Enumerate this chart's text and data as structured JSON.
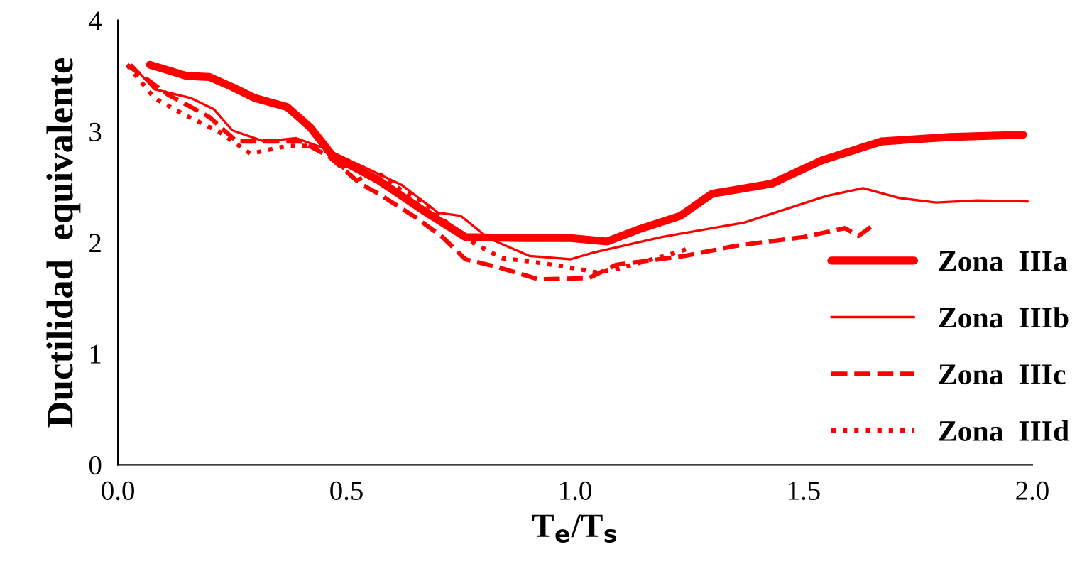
{
  "chart_data": {
    "type": "line",
    "xlabel": "T$_{e}$/T$_{s}$",
    "ylabel": "Ductilidad  equivalente",
    "xlim": [
      0,
      2
    ],
    "ylim": [
      0,
      4
    ],
    "xticks": [
      {
        "value": 0,
        "label": "0.0"
      },
      {
        "value": 0.5,
        "label": "0.5"
      },
      {
        "value": 1,
        "label": "1.0"
      },
      {
        "value": 1.5,
        "label": "1.5"
      },
      {
        "value": 2,
        "label": "2.0"
      }
    ],
    "yticks": [
      0,
      1,
      2,
      3,
      4
    ],
    "grid": false,
    "legend": "bottom right",
    "marker": "none",
    "series": [
      {
        "name": "Zona  IIIa",
        "color": "#ff0000",
        "line_style": "solid",
        "x": [
          0.07,
          0.15,
          0.2,
          0.25,
          0.3,
          0.37,
          0.42,
          0.47,
          0.57,
          0.675,
          0.76,
          0.88,
          0.99,
          1.07,
          1.14,
          1.23,
          1.3,
          1.43,
          1.54,
          1.67,
          1.82,
          1.98
        ],
        "values": [
          3.6,
          3.5,
          3.49,
          3.4,
          3.3,
          3.22,
          3.04,
          2.78,
          2.56,
          2.27,
          2.05,
          2.04,
          2.04,
          2.01,
          2.12,
          2.24,
          2.44,
          2.53,
          2.74,
          2.91,
          2.95,
          2.97
        ]
      },
      {
        "name": "Zona  IIIb",
        "color": "#ff0000",
        "line_style": "solid",
        "x": [
          0.03,
          0.08,
          0.16,
          0.21,
          0.25,
          0.32,
          0.39,
          0.45,
          0.62,
          0.7,
          0.75,
          0.81,
          0.9,
          0.99,
          1.04,
          1.19,
          1.37,
          1.55,
          1.63,
          1.71,
          1.79,
          1.88,
          1.99
        ],
        "values": [
          3.6,
          3.38,
          3.3,
          3.2,
          3.01,
          2.91,
          2.94,
          2.85,
          2.52,
          2.27,
          2.24,
          2.04,
          1.88,
          1.85,
          1.91,
          2.05,
          2.18,
          2.42,
          2.49,
          2.4,
          2.36,
          2.38,
          2.37
        ]
      },
      {
        "name": "Zona  IIIc",
        "color": "#ff0000",
        "line_style": "dashed",
        "x": [
          0.02,
          0.11,
          0.2,
          0.26,
          0.33,
          0.4,
          0.46,
          0.53,
          0.57,
          0.65,
          0.71,
          0.76,
          0.83,
          0.92,
          1.03,
          1.09,
          1.24,
          1.35,
          1.5,
          1.59,
          1.62,
          1.65
        ],
        "values": [
          3.6,
          3.33,
          3.13,
          2.91,
          2.91,
          2.91,
          2.78,
          2.53,
          2.44,
          2.23,
          2.05,
          1.85,
          1.78,
          1.67,
          1.68,
          1.8,
          1.88,
          1.97,
          2.05,
          2.13,
          2.06,
          2.15
        ]
      },
      {
        "name": "Zona  IIId",
        "color": "#ff0000",
        "line_style": "dotted",
        "x": [
          0.02,
          0.04,
          0.08,
          0.15,
          0.22,
          0.29,
          0.37,
          0.42,
          0.46,
          0.52,
          0.57,
          0.6,
          0.67,
          0.73,
          0.78,
          0.84,
          0.92,
          1.01,
          1.05,
          1.09,
          1.23,
          1.25
        ],
        "values": [
          3.6,
          3.5,
          3.3,
          3.14,
          3.0,
          2.8,
          2.87,
          2.87,
          2.82,
          2.56,
          2.63,
          2.52,
          2.36,
          2.14,
          1.99,
          1.86,
          1.82,
          1.76,
          1.73,
          1.76,
          1.92,
          1.95
        ]
      }
    ]
  }
}
